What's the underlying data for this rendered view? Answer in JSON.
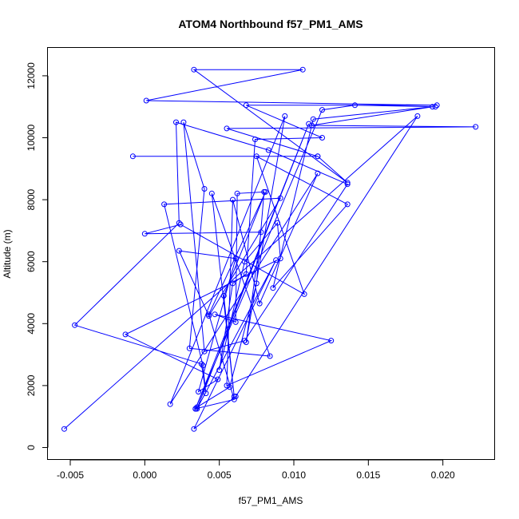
{
  "chart_data": {
    "type": "line",
    "title": "ATOM4 Northbound f57_PM1_AMS",
    "xlabel": "f57_PM1_AMS",
    "ylabel": "Altitude (m)",
    "xlim": [
      -0.0065,
      0.0235
    ],
    "ylim": [
      -400,
      12900
    ],
    "xticks": [
      -0.005,
      0.0,
      0.005,
      0.01,
      0.015,
      0.02
    ],
    "xtick_labels": [
      "-0.005",
      "0.000",
      "0.005",
      "0.010",
      "0.015",
      "0.020"
    ],
    "yticks": [
      0,
      2000,
      4000,
      6000,
      8000,
      10000,
      12000
    ],
    "ytick_labels": [
      "0",
      "2000",
      "4000",
      "6000",
      "8000",
      "10000",
      "12000"
    ],
    "series_color": "#0000ff",
    "series": [
      {
        "name": "f57_PM1_AMS",
        "points": [
          {
            "x": -0.0054,
            "y": 600
          },
          {
            "x": 0.0183,
            "y": 10700
          },
          {
            "x": 0.0061,
            "y": 1650
          },
          {
            "x": 0.0033,
            "y": 600
          },
          {
            "x": 0.0088,
            "y": 6050
          },
          {
            "x": 0.0035,
            "y": 1250
          },
          {
            "x": 0.011,
            "y": 10450
          },
          {
            "x": 0.0034,
            "y": 1250
          },
          {
            "x": 0.006,
            "y": 1550
          },
          {
            "x": 0.0043,
            "y": 4300
          },
          {
            "x": 0.0081,
            "y": 8250
          },
          {
            "x": 0.0053,
            "y": 4900
          },
          {
            "x": 0.006,
            "y": 1650
          },
          {
            "x": 0.0045,
            "y": 8200
          },
          {
            "x": 0.0084,
            "y": 2950
          },
          {
            "x": 0.003,
            "y": 3200
          },
          {
            "x": 0.004,
            "y": 8350
          },
          {
            "x": 0.0026,
            "y": 10500
          },
          {
            "x": 0.004,
            "y": 3100
          },
          {
            "x": 0.0067,
            "y": 3450
          },
          {
            "x": 0.0136,
            "y": 8500
          },
          {
            "x": 0.0083,
            "y": 9600
          },
          {
            "x": 0.0021,
            "y": 10500
          },
          {
            "x": 0.0023,
            "y": 7250
          },
          {
            "x": -0.0047,
            "y": 3950
          },
          {
            "x": 0.0038,
            "y": 2700
          },
          {
            "x": 0.0041,
            "y": 1750
          },
          {
            "x": 0.0039,
            "y": 2650
          },
          {
            "x": 0.0013,
            "y": 7850
          },
          {
            "x": 0.0091,
            "y": 8050
          },
          {
            "x": 0.0043,
            "y": 4250
          },
          {
            "x": 0.0023,
            "y": 6350
          },
          {
            "x": 0.0061,
            "y": 6100
          },
          {
            "x": 0.0036,
            "y": 1800
          },
          {
            "x": 0.0049,
            "y": 2200
          },
          {
            "x": -0.0013,
            "y": 3650
          },
          {
            "x": 0.0091,
            "y": 6100
          },
          {
            "x": 0.0089,
            "y": 7250
          },
          {
            "x": 0.0067,
            "y": 6000
          },
          {
            "x": 0.005,
            "y": 2500
          },
          {
            "x": 0.0059,
            "y": 5300
          },
          {
            "x": 0.0068,
            "y": 5600
          },
          {
            "x": 0.0074,
            "y": 9950
          },
          {
            "x": 0.0119,
            "y": 10000
          },
          {
            "x": 0.0068,
            "y": 11050
          },
          {
            "x": 0.0196,
            "y": 11050
          },
          {
            "x": 0.0001,
            "y": 11200
          },
          {
            "x": 0.0106,
            "y": 12200
          },
          {
            "x": 0.0033,
            "y": 12200
          },
          {
            "x": 0.0136,
            "y": 8550
          },
          {
            "x": 0.0116,
            "y": 9400
          },
          {
            "x": -0.0008,
            "y": 9400
          },
          {
            "x": 0.0116,
            "y": 9400
          },
          {
            "x": 0.0055,
            "y": 10300
          },
          {
            "x": 0.0222,
            "y": 10350
          },
          {
            "x": 0.0112,
            "y": 10400
          },
          {
            "x": 0.0193,
            "y": 11000
          },
          {
            "x": 0.0113,
            "y": 10600
          },
          {
            "x": 0.0086,
            "y": 5150
          },
          {
            "x": 0.0136,
            "y": 7850
          },
          {
            "x": 0.0075,
            "y": 9400
          },
          {
            "x": 0.0107,
            "y": 4950
          },
          {
            "x": 0.0024,
            "y": 7200
          },
          {
            "x": 0.0,
            "y": 6900
          },
          {
            "x": 0.0078,
            "y": 6950
          },
          {
            "x": 0.0068,
            "y": 3400
          },
          {
            "x": 0.0094,
            "y": 10700
          },
          {
            "x": 0.0017,
            "y": 1400
          },
          {
            "x": 0.0116,
            "y": 8850
          },
          {
            "x": 0.0077,
            "y": 4650
          },
          {
            "x": 0.0059,
            "y": 8000
          },
          {
            "x": 0.0055,
            "y": 2000
          },
          {
            "x": 0.0125,
            "y": 3450
          },
          {
            "x": 0.0047,
            "y": 4300
          },
          {
            "x": 0.0061,
            "y": 4050
          },
          {
            "x": 0.0062,
            "y": 8200
          },
          {
            "x": 0.008,
            "y": 8250
          },
          {
            "x": 0.0075,
            "y": 5300
          },
          {
            "x": 0.0057,
            "y": 1950
          },
          {
            "x": 0.0035,
            "y": 1300
          },
          {
            "x": 0.0034,
            "y": 1250
          },
          {
            "x": 0.0119,
            "y": 10900
          },
          {
            "x": 0.0141,
            "y": 11050
          },
          {
            "x": 0.0195,
            "y": 11000
          }
        ]
      }
    ]
  }
}
